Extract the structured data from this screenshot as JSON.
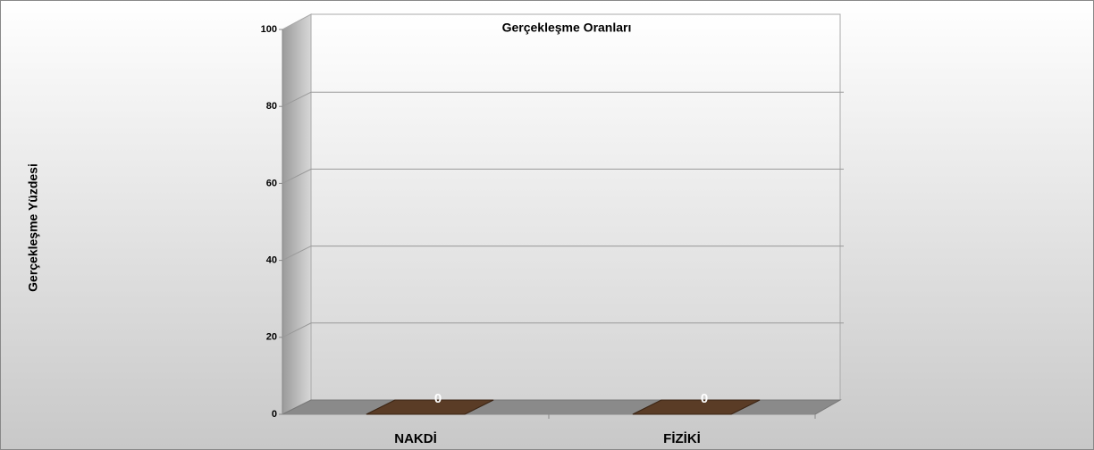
{
  "chart_data": {
    "type": "bar",
    "title": "Gerçekleşme Oranları",
    "ylabel": "Gerçekleşme Yüzdesi",
    "categories": [
      "NAKDİ",
      "FİZİKİ"
    ],
    "values": [
      0,
      0
    ],
    "color": "#5a3c26",
    "ylim": [
      0,
      100
    ],
    "yticks": [
      0,
      20,
      40,
      60,
      80,
      100
    ],
    "grid": true
  }
}
